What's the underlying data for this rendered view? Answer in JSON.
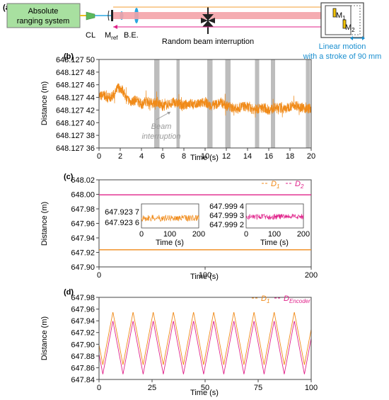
{
  "setup": {
    "panel_label": "(a)",
    "system_label_line1": "Absolute",
    "system_label_line2": "ranging system",
    "cl_label": "CL",
    "mref_label": "M",
    "mref_sub": "ref",
    "be_label": "B.E.",
    "interruption_label": "Random beam interruption",
    "m1_label": "M",
    "m1_sub": "1",
    "m2_label": "M",
    "m2_sub": "2",
    "motion_line1": "Linear motion",
    "motion_line2": "with a stroke of 90 mm",
    "colors": {
      "box_fill": "#a8e0a0",
      "beam": "#f4a3a8",
      "motion_text": "#1a8fd0",
      "arrow_orange": "#f39c33",
      "arrow_magenta": "#e0228a",
      "lens": "#2aa7e0"
    }
  },
  "chart_data": [
    {
      "type": "line",
      "panel_label": "(b)",
      "xlabel": "Time (s)",
      "ylabel": "Distance (m)",
      "xlim": [
        0,
        20
      ],
      "ylim": [
        36,
        50
      ],
      "x_ticks": [
        "0",
        "2",
        "4",
        "6",
        "8",
        "10",
        "12",
        "14",
        "16",
        "18",
        "20"
      ],
      "y_ticks": [
        "648.127 36",
        "648.127 38",
        "648.127 40",
        "648.127 42",
        "648.127 44",
        "648.127 46",
        "648.127 48",
        "648.127 50"
      ],
      "series": [
        {
          "x": [
            0,
            0.5,
            1,
            1.5,
            1.8,
            2.2,
            2.6,
            3,
            3.5,
            4,
            4.5,
            5,
            5.5,
            6,
            6.5,
            7,
            7.5,
            8,
            8.5,
            9,
            9.5,
            10,
            10.5,
            11,
            11.5,
            12,
            12.5,
            13,
            13.5,
            14,
            14.5,
            15,
            15.5,
            16,
            16.5,
            17,
            17.5,
            18,
            18.5,
            19,
            19.5,
            20
          ],
          "y": [
            44.2,
            44.3,
            43.9,
            44.6,
            45.6,
            45.2,
            43.8,
            43.3,
            43.6,
            42.9,
            43.4,
            43.1,
            43.3,
            42.6,
            42.9,
            43.2,
            43.0,
            42.7,
            43.1,
            42.8,
            43.0,
            43.3,
            42.6,
            42.9,
            43.2,
            42.7,
            42.4,
            42.2,
            42.6,
            42.5,
            42.1,
            42.2,
            42.4,
            42.0,
            42.3,
            42.4,
            42.1,
            42.6,
            42.8,
            42.5,
            42.2,
            42.3
          ]
        }
      ],
      "interruptions": [
        [
          5.2,
          5.7
        ],
        [
          7.3,
          7.6
        ],
        [
          10.2,
          10.7
        ],
        [
          11.9,
          12.4
        ],
        [
          14.7,
          15.1
        ],
        [
          16.2,
          16.6
        ],
        [
          19.5,
          19.9
        ]
      ],
      "annotation_line1": "Beam",
      "annotation_line2": "interruption",
      "colors": {
        "line": "#f08a18",
        "band": "#bdbdbd",
        "annotation": "#9a9a9a"
      }
    },
    {
      "type": "line",
      "panel_label": "(c)",
      "xlabel": "Time (s)",
      "ylabel": "Distance (m)",
      "xlim": [
        0,
        200
      ],
      "ylim": [
        647.9,
        648.02
      ],
      "x_ticks": [
        "0",
        "100",
        "200"
      ],
      "y_ticks": [
        "647.90",
        "647.92",
        "647.94",
        "647.96",
        "647.98",
        "648.00",
        "648.02"
      ],
      "series": [
        {
          "name": "D",
          "name_sub": "1",
          "x": [
            0,
            200
          ],
          "y": [
            647.9236,
            647.9236
          ]
        },
        {
          "name": "D",
          "name_sub": "2",
          "x": [
            0,
            200
          ],
          "y": [
            647.9993,
            647.9993
          ]
        }
      ],
      "insets": [
        {
          "x_ticks": [
            "0",
            "100",
            "200"
          ],
          "xlabel": "Time (s)",
          "y_ticks": [
            "647.923 7",
            "647.923 6"
          ]
        },
        {
          "x_ticks": [
            "0",
            "100",
            "200"
          ],
          "xlabel": "Time (s)",
          "y_ticks": [
            "647.999 4",
            "647.999 3",
            "647.999 2"
          ]
        }
      ],
      "colors": {
        "d1": "#f08a18",
        "d2": "#e0228a"
      }
    },
    {
      "type": "line",
      "panel_label": "(d)",
      "xlabel": "Time (s)",
      "ylabel": "Distance (m)",
      "xlim": [
        0,
        100
      ],
      "ylim": [
        647.84,
        647.98
      ],
      "x_ticks": [
        "0",
        "25",
        "50",
        "75",
        "100"
      ],
      "y_ticks": [
        "647.84",
        "647.86",
        "647.88",
        "647.90",
        "647.92",
        "647.94",
        "647.96",
        "647.98"
      ],
      "period_s": 9.5,
      "series": [
        {
          "name": "D",
          "name_sub": "1",
          "min": 647.865,
          "max": 647.955
        },
        {
          "name": "D",
          "name_sub": "Encoder",
          "min": 647.849,
          "max": 647.94
        }
      ],
      "colors": {
        "d1": "#f08a18",
        "d2": "#e0228a"
      }
    }
  ]
}
